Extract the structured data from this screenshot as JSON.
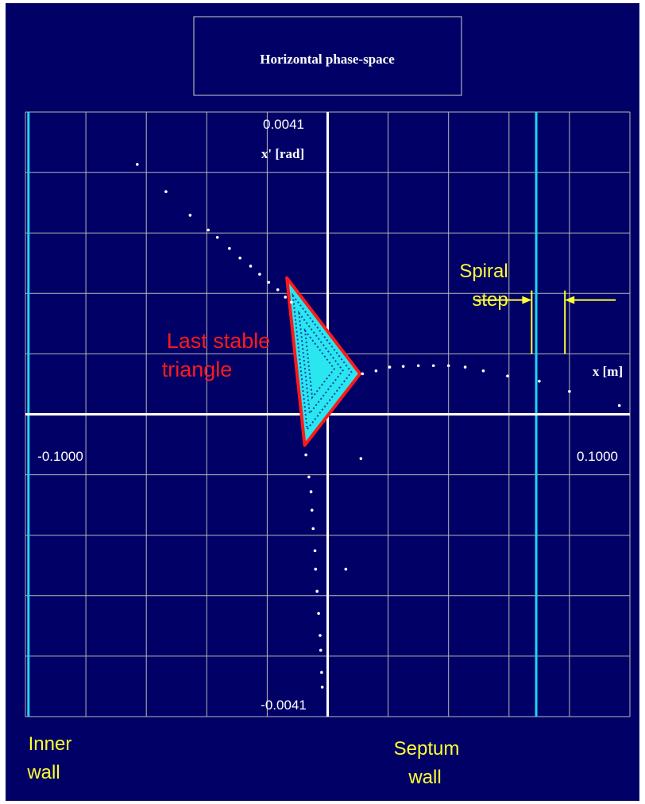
{
  "title": "Horizontal phase-space",
  "colors": {
    "background": "#000066",
    "grid": "#b8b8b8",
    "axes": "#ffffff",
    "walls": "#22d4ee",
    "triangle_fill": "#2ae6ee",
    "triangle_edge": "#ff1a1a",
    "annotation_text": "#ffff33",
    "label_text_red": "#ff1a1a",
    "particles": "#ffffff"
  },
  "chart_data": {
    "type": "scatter",
    "title": "Horizontal phase-space",
    "xlabel": "x [m]",
    "ylabel": "x' [rad]",
    "xlim": [
      -0.1,
      0.1
    ],
    "ylim": [
      -0.0041,
      0.0041
    ],
    "tick_labels": {
      "x_min": "-0.1000",
      "x_max": "0.1000",
      "y_max": "0.0041",
      "y_min": "-0.0041"
    },
    "grid": true,
    "grid_divisions": {
      "x": 10,
      "y": 10
    },
    "walls": [
      {
        "name": "inner-wall",
        "x": -0.099
      },
      {
        "name": "septum-wall",
        "x": 0.069
      }
    ],
    "last_stable_triangle": [
      {
        "x": -0.0135,
        "y": 0.00185
      },
      {
        "x": 0.0107,
        "y": 0.00055
      },
      {
        "x": -0.0076,
        "y": -0.00042
      }
    ],
    "spiral_step": {
      "x_from": 0.0675,
      "x_to": 0.0785,
      "y": 0.00155
    },
    "particles": [
      {
        "x": -0.063,
        "y": 0.00339
      },
      {
        "x": -0.0535,
        "y": 0.00302
      },
      {
        "x": -0.0455,
        "y": 0.0027
      },
      {
        "x": -0.0395,
        "y": 0.0025
      },
      {
        "x": -0.0365,
        "y": 0.0024
      },
      {
        "x": -0.0325,
        "y": 0.00225
      },
      {
        "x": -0.029,
        "y": 0.00212
      },
      {
        "x": -0.0255,
        "y": 0.00201
      },
      {
        "x": -0.0225,
        "y": 0.0019
      },
      {
        "x": -0.0195,
        "y": 0.00179
      },
      {
        "x": -0.0165,
        "y": 0.00169
      },
      {
        "x": -0.014,
        "y": 0.00159
      },
      {
        "x": -0.012,
        "y": 0.00152
      },
      {
        "x": 0.0115,
        "y": 0.00055
      },
      {
        "x": 0.016,
        "y": 0.00059
      },
      {
        "x": 0.0205,
        "y": 0.00064
      },
      {
        "x": 0.025,
        "y": 0.00065
      },
      {
        "x": 0.03,
        "y": 0.00066
      },
      {
        "x": 0.035,
        "y": 0.00066
      },
      {
        "x": 0.04,
        "y": 0.00066
      },
      {
        "x": 0.0455,
        "y": 0.00064
      },
      {
        "x": 0.0515,
        "y": 0.00059
      },
      {
        "x": 0.0595,
        "y": 0.00052
      },
      {
        "x": 0.07,
        "y": 0.00045
      },
      {
        "x": 0.08,
        "y": 0.00031
      },
      {
        "x": 0.0965,
        "y": 0.00012
      },
      {
        "x": 0.1205,
        "y": -4e-05
      },
      {
        "x": -0.0072,
        "y": -0.00055
      },
      {
        "x": -0.0062,
        "y": -0.00085
      },
      {
        "x": -0.0055,
        "y": -0.00105
      },
      {
        "x": -0.0052,
        "y": -0.0013
      },
      {
        "x": -0.0048,
        "y": -0.00155
      },
      {
        "x": -0.0042,
        "y": -0.00185
      },
      {
        "x": -0.004,
        "y": -0.0021
      },
      {
        "x": -0.0035,
        "y": -0.0024
      },
      {
        "x": -0.003,
        "y": -0.0027
      },
      {
        "x": -0.0025,
        "y": -0.003
      },
      {
        "x": -0.0023,
        "y": -0.0032
      },
      {
        "x": -0.002,
        "y": -0.0035
      },
      {
        "x": -0.0018,
        "y": -0.0037
      },
      {
        "x": 0.006,
        "y": -0.0021
      },
      {
        "x": 0.011,
        "y": -0.0006
      }
    ]
  },
  "annotations": {
    "triangle_label_line1": "Last stable",
    "triangle_label_line2": "triangle",
    "spiral_label_line1": "Spiral",
    "spiral_label_line2": "step",
    "inner_wall_line1": "Inner",
    "inner_wall_line2": "wall",
    "septum_wall_line1": "Septum",
    "septum_wall_line2": "wall"
  }
}
